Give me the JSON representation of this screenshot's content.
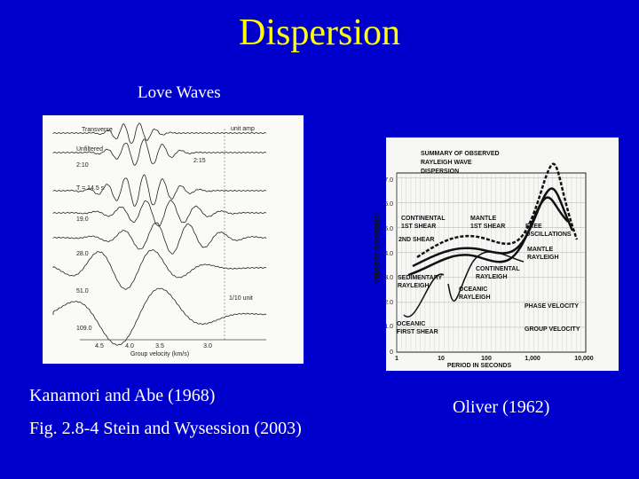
{
  "slide": {
    "title": "Dispersion",
    "subtitle": "Love Waves",
    "left_caption": [
      "Kanamori and Abe (1968)",
      "Fig. 2.8-4 Stein and Wysession (2003)"
    ],
    "right_caption": "Oliver (1962)"
  },
  "left_figure": {
    "labels": [
      "Transverse",
      "unit amp",
      "Unfiltered",
      "2:10",
      "2:15",
      "T = 14.5 s",
      "19.0",
      "28.0",
      "51.0",
      "109.0",
      "1/10 unit"
    ],
    "x_ticks": [
      "4.5",
      "4.0",
      "3.5",
      "3.0"
    ],
    "x_title": "Group velocity (km/s)"
  },
  "right_figure": {
    "title": [
      "SUMMARY OF OBSERVED",
      "RAYLEIGH WAVE",
      "DISPERSION"
    ],
    "y_ticks": [
      "7.0",
      "6.0",
      "5.0",
      "4.0",
      "3.0",
      "2.0",
      "1.0",
      "0"
    ],
    "x_ticks": [
      "1",
      "10",
      "100",
      "1,000",
      "10,000"
    ],
    "y_title": "VELOCITY IN KMS/SEC",
    "x_title": "PERIOD IN SECONDS",
    "labels": [
      [
        "CONTINENTAL",
        "1ST SHEAR"
      ],
      [
        "MANTLE",
        "1ST SHEAR"
      ],
      [
        "2ND SHEAR"
      ],
      [
        "FREE",
        "OSCILLATIONS"
      ],
      [
        "MANTLE",
        "RAYLEIGH"
      ],
      [
        "CONTINENTAL",
        "RAYLEIGH"
      ],
      [
        "SEDIMENTARY",
        "RAYLEIGH"
      ],
      [
        "OCEANIC",
        "RAYLEIGH"
      ],
      [
        "PHASE VELOCITY"
      ],
      [
        "GROUP VELOCITY"
      ],
      [
        "OCEANIC",
        "FIRST SHEAR"
      ]
    ]
  }
}
